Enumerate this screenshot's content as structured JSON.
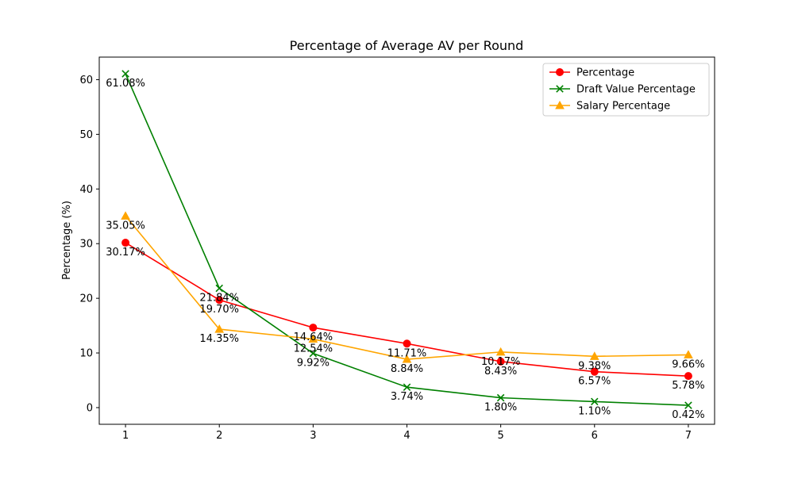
{
  "chart_data": {
    "type": "line",
    "title": "Percentage of Average AV per Round",
    "xlabel": "",
    "ylabel": "Percentage (%)",
    "x": [
      1,
      2,
      3,
      4,
      5,
      6,
      7
    ],
    "x_ticks": [
      "1",
      "2",
      "3",
      "4",
      "5",
      "6",
      "7"
    ],
    "y_ticks": [
      "0",
      "10",
      "20",
      "30",
      "40",
      "50",
      "60"
    ],
    "xlim": [
      0.72,
      7.28
    ],
    "ylim": [
      -3.05,
      64.13
    ],
    "grid": false,
    "legend_position": "top-right",
    "series": [
      {
        "name": "Percentage",
        "color": "#ff0000",
        "marker": "circle",
        "values": [
          30.17,
          19.7,
          14.64,
          11.71,
          8.43,
          6.57,
          5.78
        ],
        "labels": [
          "30.17%",
          "19.70%",
          "14.64%",
          "11.71%",
          "8.43%",
          "6.57%",
          "5.78%"
        ]
      },
      {
        "name": "Draft Value Percentage",
        "color": "#008000",
        "marker": "x",
        "values": [
          61.08,
          21.84,
          9.92,
          3.74,
          1.8,
          1.1,
          0.42
        ],
        "labels": [
          "61.08%",
          "21.84%",
          "9.92%",
          "3.74%",
          "1.80%",
          "1.10%",
          "0.42%"
        ]
      },
      {
        "name": "Salary Percentage",
        "color": "#ffa500",
        "marker": "triangle",
        "values": [
          35.05,
          14.35,
          12.54,
          8.84,
          10.17,
          9.38,
          9.66
        ],
        "labels": [
          "35.05%",
          "14.35%",
          "12.54%",
          "8.84%",
          "10.17%",
          "9.38%",
          "9.66%"
        ]
      }
    ]
  }
}
